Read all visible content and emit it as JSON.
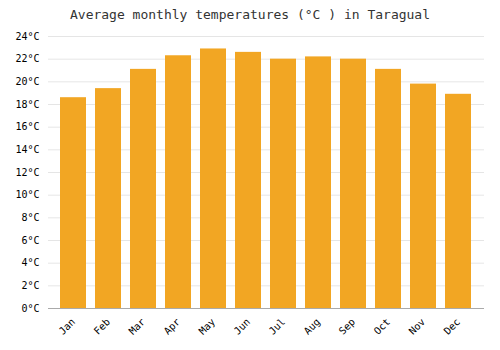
{
  "chart_data": {
    "type": "bar",
    "title": "Average monthly temperatures (°C ) in Taragual",
    "categories": [
      "Jan",
      "Feb",
      "Mar",
      "Apr",
      "May",
      "Jun",
      "Jul",
      "Aug",
      "Sep",
      "Oct",
      "Nov",
      "Dec"
    ],
    "values": [
      18.6,
      19.4,
      21.1,
      22.3,
      22.9,
      22.6,
      22.0,
      22.2,
      22.0,
      21.1,
      19.8,
      18.9
    ],
    "color": "#F2A623",
    "ylim": [
      0,
      24
    ],
    "yticks": [
      {
        "value": 0,
        "label": "0°C"
      },
      {
        "value": 2,
        "label": "2°C"
      },
      {
        "value": 4,
        "label": "4°C"
      },
      {
        "value": 6,
        "label": "6°C"
      },
      {
        "value": 8,
        "label": "8°C"
      },
      {
        "value": 10,
        "label": "10°C"
      },
      {
        "value": 12,
        "label": "12°C"
      },
      {
        "value": 14,
        "label": "14°C"
      },
      {
        "value": 16,
        "label": "16°C"
      },
      {
        "value": 18,
        "label": "18°C"
      },
      {
        "value": 20,
        "label": "20°C"
      },
      {
        "value": 22,
        "label": "22°C"
      },
      {
        "value": 24,
        "label": "24°C"
      }
    ],
    "grid": true
  }
}
